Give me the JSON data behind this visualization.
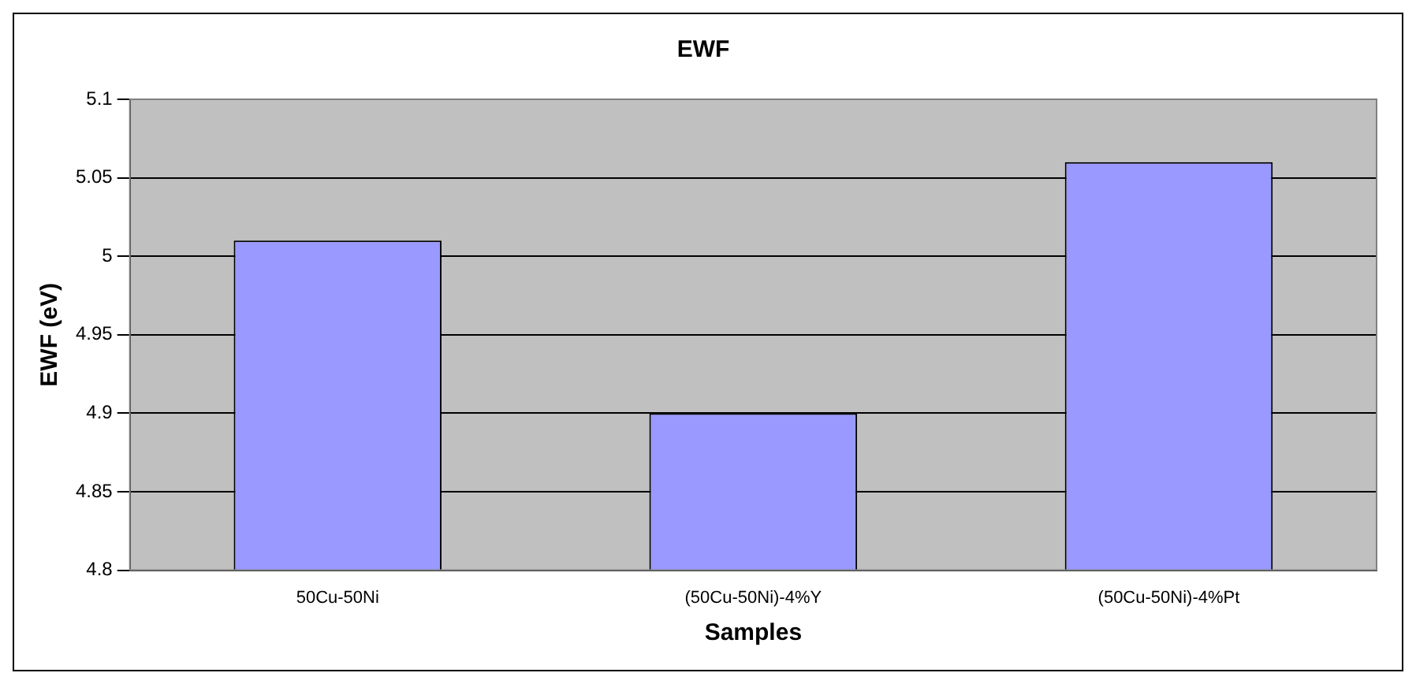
{
  "chart_data": {
    "type": "bar",
    "title": "EWF",
    "xlabel": "Samples",
    "ylabel": "EWF (eV)",
    "categories": [
      "50Cu-50Ni",
      "(50Cu-50Ni)-4%Y",
      "(50Cu-50Ni)-4%Pt"
    ],
    "values": [
      5.01,
      4.9,
      5.06
    ],
    "color": "#9999ff",
    "ylim": [
      4.8,
      5.1
    ],
    "yticks": [
      4.8,
      4.85,
      4.9,
      4.95,
      5,
      5.05,
      5.1
    ],
    "grid": "y",
    "legend": false
  }
}
